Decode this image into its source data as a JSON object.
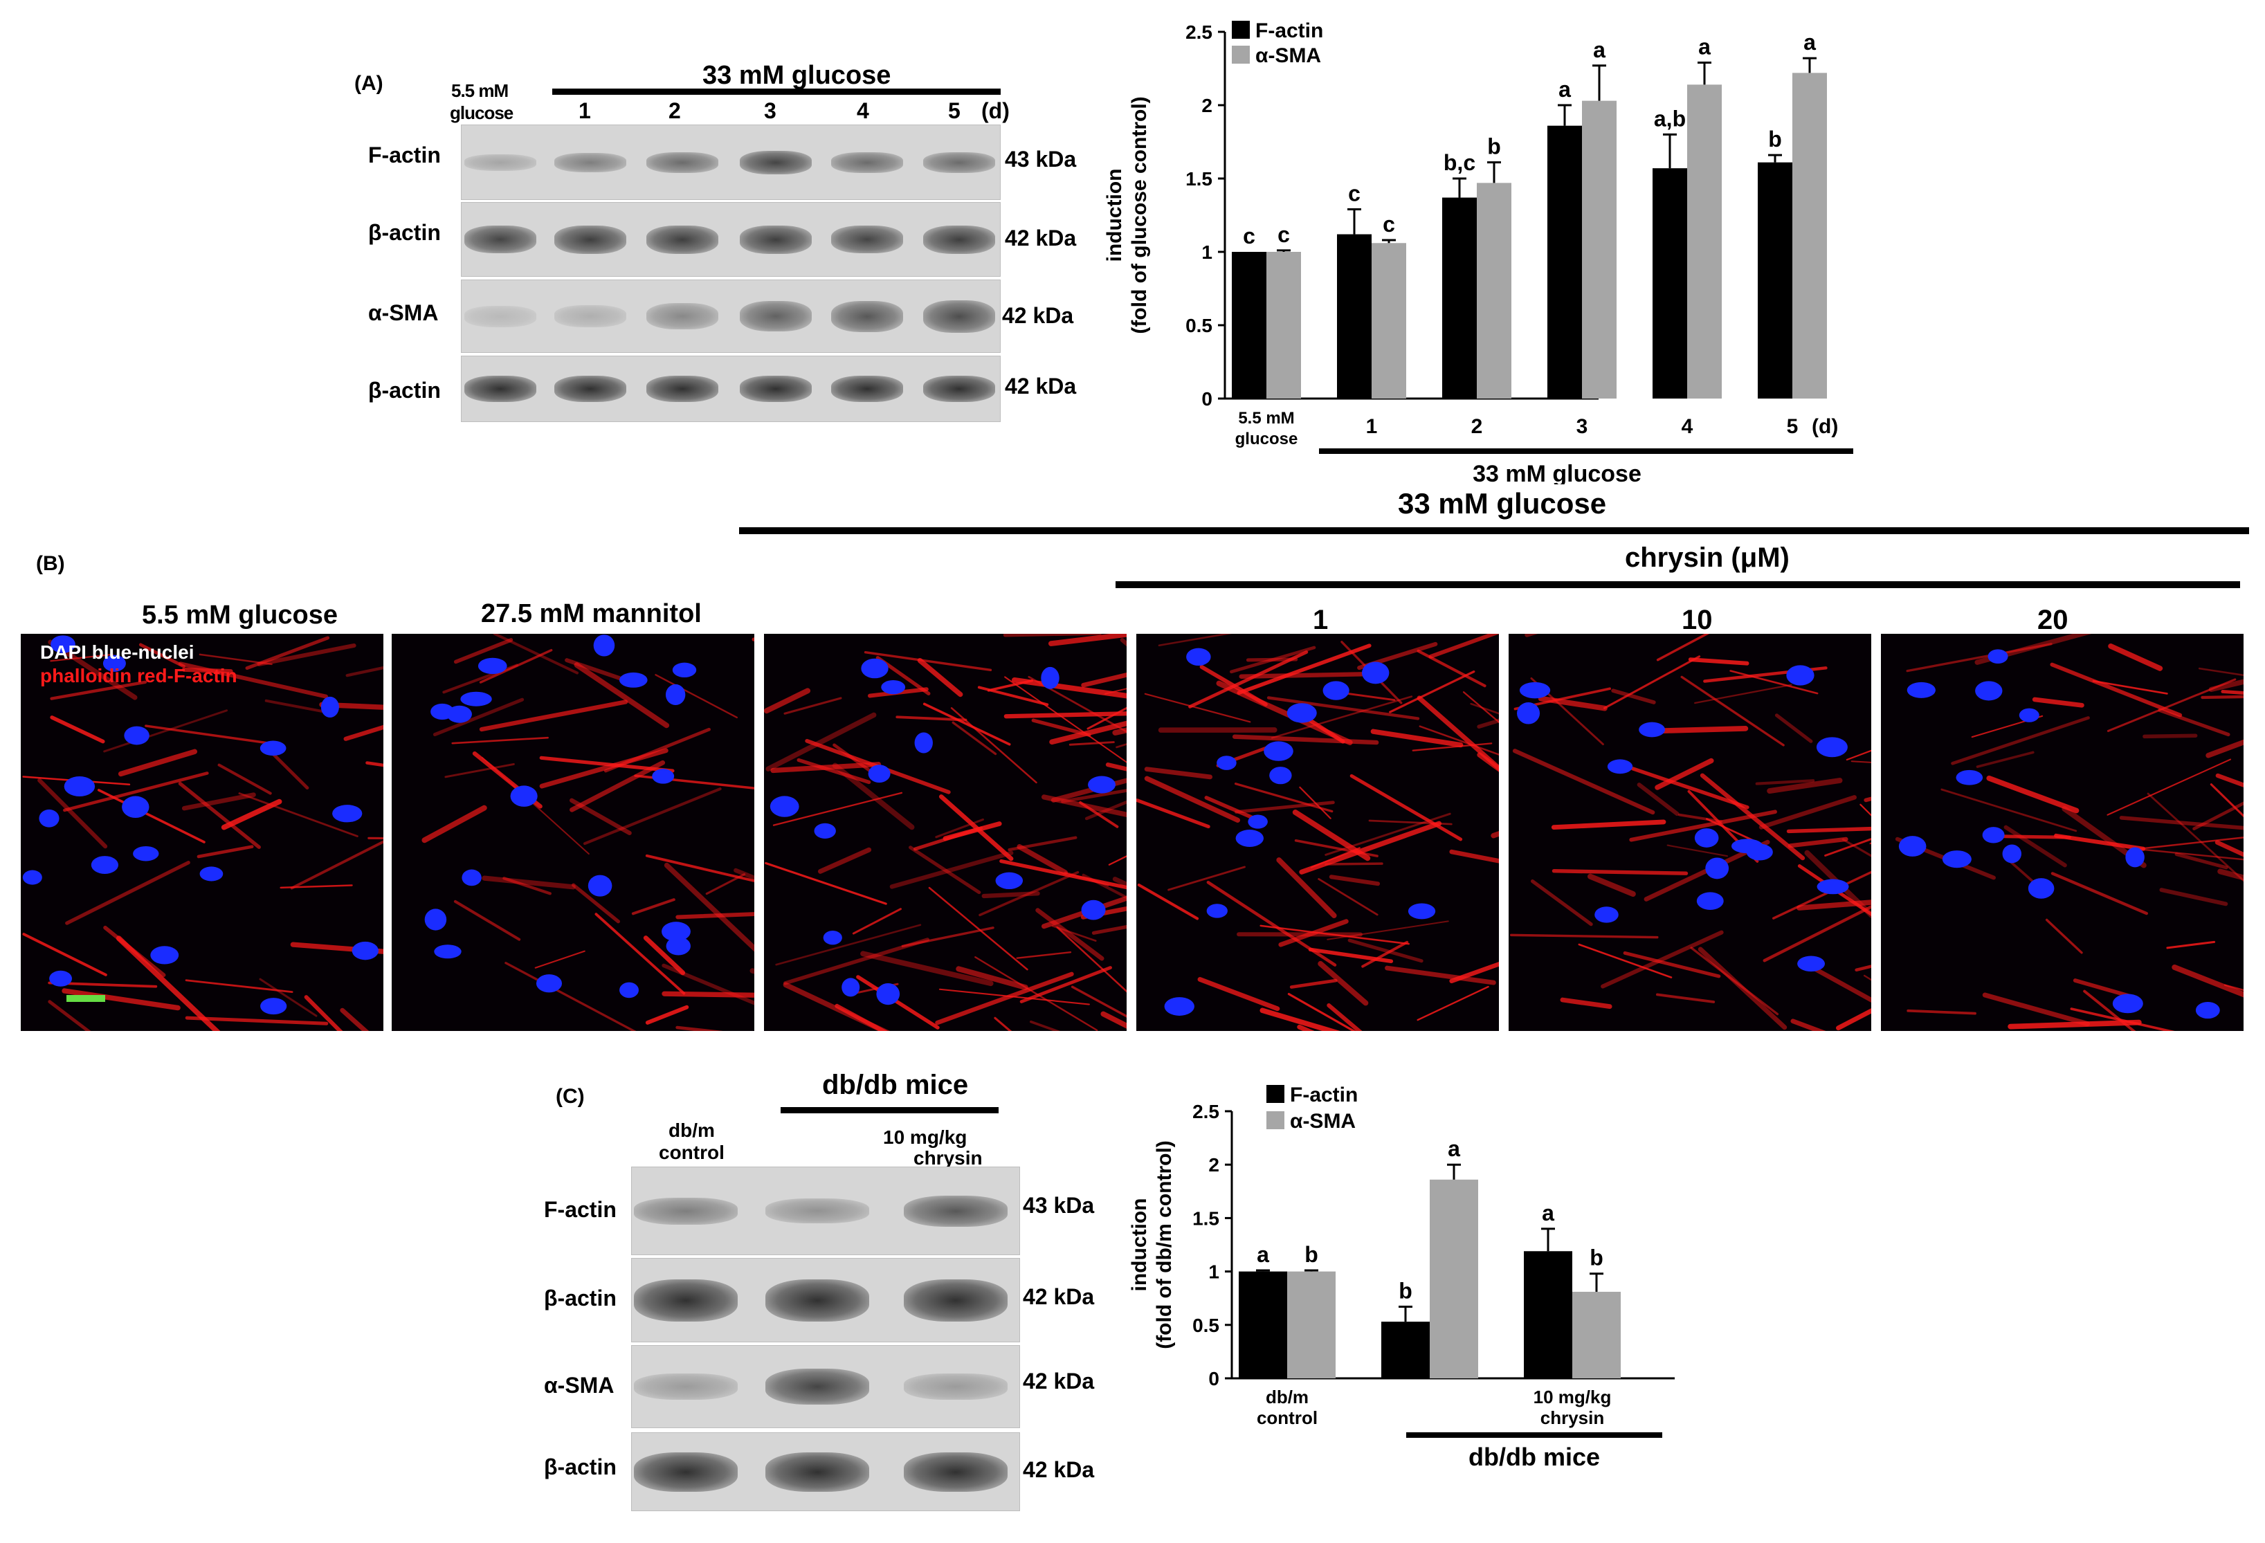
{
  "panel_a": {
    "letter": "(A)",
    "header": "33 mM glucose",
    "control_label_1": "5.5 mM",
    "control_label_2": "glucose",
    "days": [
      "1",
      "2",
      "3",
      "4",
      "5"
    ],
    "day_unit": "(d)",
    "rows": [
      {
        "name": "F-actin",
        "kda": "43 kDa"
      },
      {
        "name": "β-actin",
        "kda": "42 kDa"
      },
      {
        "name": "α-SMA",
        "kda": "42 kDa"
      },
      {
        "name": "β-actin",
        "kda": "42 kDa"
      }
    ],
    "band_intensity": [
      [
        0.25,
        0.45,
        0.55,
        0.75,
        0.55,
        0.55
      ],
      [
        0.75,
        0.78,
        0.78,
        0.78,
        0.75,
        0.78
      ],
      [
        0.15,
        0.2,
        0.4,
        0.6,
        0.65,
        0.7
      ],
      [
        0.85,
        0.85,
        0.85,
        0.85,
        0.85,
        0.85
      ]
    ]
  },
  "panel_b": {
    "letter": "(B)",
    "header": "33 mM glucose",
    "subheader": "chrysin (μM)",
    "images": [
      {
        "title": "5.5 mM glucose",
        "density": 0.35
      },
      {
        "title": "27.5 mM mannitol",
        "density": 0.3
      },
      {
        "title": "",
        "density": 0.9
      },
      {
        "title": "1",
        "density": 0.7
      },
      {
        "title": "10",
        "density": 0.55
      },
      {
        "title": "20",
        "density": 0.4
      }
    ],
    "legend_line1": "DAPI blue-nuclei",
    "legend_line2": "phalloidin red-F-actin",
    "colors": {
      "nuclei": "#1a2cff",
      "actin": "#ff1a1a",
      "scalebar": "#66dd44"
    }
  },
  "panel_c": {
    "letter": "(C)",
    "header": "db/db mice",
    "col_control_1": "db/m",
    "col_control_2": "control",
    "col_treat_1": "10 mg/kg",
    "col_treat_2": "chrysin",
    "rows": [
      {
        "name": "F-actin",
        "kda": "43 kDa"
      },
      {
        "name": "β-actin",
        "kda": "42 kDa"
      },
      {
        "name": "α-SMA",
        "kda": "42 kDa"
      },
      {
        "name": "β-actin",
        "kda": "42 kDa"
      }
    ],
    "band_intensity": [
      [
        0.45,
        0.35,
        0.65
      ],
      [
        0.85,
        0.85,
        0.85
      ],
      [
        0.3,
        0.75,
        0.3
      ],
      [
        0.85,
        0.85,
        0.85
      ]
    ]
  },
  "chart_data": [
    {
      "type": "bar",
      "ylabel_line1": "induction",
      "ylabel_line2": "(fold of glucose control)",
      "ylim": [
        0,
        2.5
      ],
      "yticks": [
        "0",
        "0.5",
        "1",
        "1.5",
        "2",
        "2.5"
      ],
      "categories": [
        "5.5 mM glucose",
        "1",
        "2",
        "3",
        "4",
        "5"
      ],
      "cat_label_control_1": "5.5 mM",
      "cat_label_control_2": "glucose",
      "day_unit": "(d)",
      "group_label": "33 mM glucose",
      "series": [
        {
          "name": "F-actin",
          "color": "#000000",
          "values": [
            1.0,
            1.12,
            1.37,
            1.86,
            1.57,
            1.61
          ],
          "errors": [
            0,
            0.17,
            0.13,
            0.14,
            0.23,
            0.05
          ],
          "letters": [
            "c",
            "c",
            "b,c",
            "a",
            "a,b",
            "b"
          ]
        },
        {
          "name": "α-SMA",
          "color": "#a6a6a6",
          "values": [
            1.0,
            1.06,
            1.47,
            2.03,
            2.14,
            2.22
          ],
          "errors": [
            0.01,
            0.02,
            0.14,
            0.24,
            0.15,
            0.1
          ],
          "letters": [
            "c",
            "c",
            "b",
            "a",
            "a",
            "a"
          ]
        }
      ],
      "legend": "top-left"
    },
    {
      "type": "bar",
      "ylabel_line1": "induction",
      "ylabel_line2": "(fold of db/m control)",
      "ylim": [
        0,
        2.5
      ],
      "yticks": [
        "0",
        "0.5",
        "1",
        "1.5",
        "2",
        "2.5"
      ],
      "categories": [
        "db/m control",
        "db/db mice",
        "10 mg/kg chrysin"
      ],
      "cat_label_control_1": "db/m",
      "cat_label_control_2": "control",
      "cat_label_treat_1": "10 mg/kg",
      "cat_label_treat_2": "chrysin",
      "group_label": "db/db mice",
      "series": [
        {
          "name": "F-actin",
          "color": "#000000",
          "values": [
            1.0,
            0.53,
            1.19
          ],
          "errors": [
            0.01,
            0.14,
            0.21
          ],
          "letters": [
            "a",
            "b",
            "a"
          ]
        },
        {
          "name": "α-SMA",
          "color": "#a6a6a6",
          "values": [
            1.0,
            1.86,
            0.81
          ],
          "errors": [
            0.01,
            0.14,
            0.17
          ],
          "letters": [
            "b",
            "a",
            "b"
          ]
        }
      ],
      "legend": "top-left"
    }
  ]
}
